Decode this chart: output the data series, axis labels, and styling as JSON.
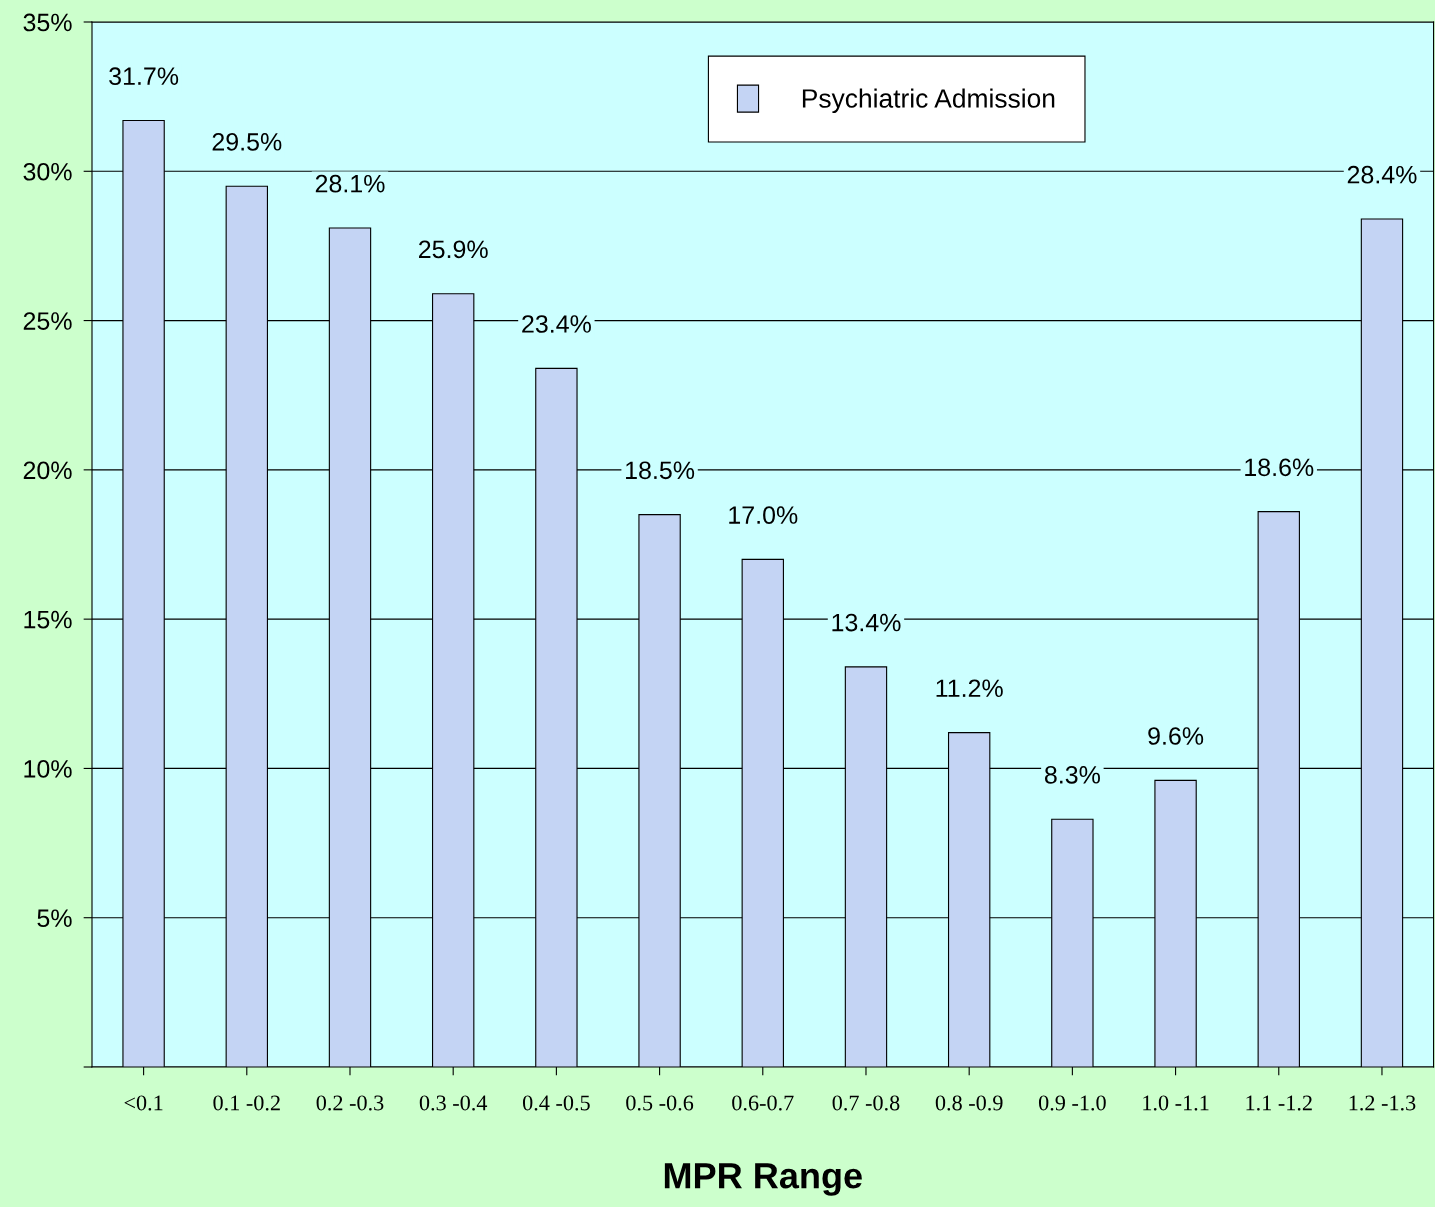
{
  "chart_data": {
    "type": "bar",
    "xlabel": "MPR Range",
    "categories": [
      "<0.1",
      "0.1 -0.2",
      "0.2 -0.3",
      "0.3 -0.4",
      "0.4 -0.5",
      "0.5 -0.6",
      "0.6-0.7",
      "0.7 -0.8",
      "0.8 -0.9",
      "0.9 -1.0",
      "1.0 -1.1",
      "1.1 -1.2",
      "1.2 -1.3"
    ],
    "series": [
      {
        "name": "Psychiatric Admission",
        "color": "#c4d4f4",
        "values": [
          31.7,
          29.5,
          28.1,
          25.9,
          23.4,
          18.5,
          17.0,
          13.4,
          11.2,
          8.3,
          9.6,
          18.6,
          28.4
        ],
        "value_labels": [
          "31.7%",
          "29.5%",
          "28.1%",
          "25.9%",
          "23.4%",
          "18.5%",
          "17.0%",
          "13.4%",
          "11.2%",
          "8.3%",
          "9.6%",
          "18.6%",
          "28.4%"
        ]
      }
    ],
    "ylim": [
      0,
      35
    ],
    "yticks": [
      {
        "value": 0,
        "label": null
      },
      {
        "value": 5,
        "label": "5%"
      },
      {
        "value": 10,
        "label": "10%"
      },
      {
        "value": 15,
        "label": "15%"
      },
      {
        "value": 20,
        "label": "20%"
      },
      {
        "value": 25,
        "label": "25%"
      },
      {
        "value": 30,
        "label": "30%"
      },
      {
        "value": 35,
        "label": "35%"
      }
    ],
    "grid": "y",
    "legend": "top right"
  }
}
